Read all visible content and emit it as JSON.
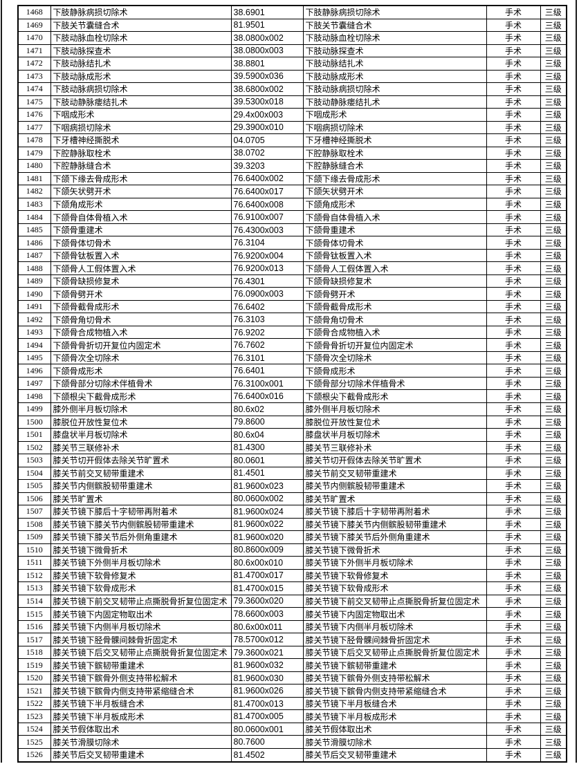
{
  "page": {
    "background_color": "#ffffff",
    "border_color": "#000000",
    "text_color": "#000000"
  },
  "table": {
    "column_keys": [
      "row-number-cell",
      "procedure-name-cell",
      "procedure-code-cell",
      "procedure-name2-cell",
      "category-cell",
      "level-cell"
    ],
    "category_label": "手术",
    "level_label": "三级",
    "rows": [
      [
        "1468",
        "下肢静脉病损切除术",
        "38.6901",
        "下肢静脉病损切除术",
        "手术",
        "三级"
      ],
      [
        "1469",
        "下肢关节囊缝合术",
        "81.9501",
        "下肢关节囊缝合术",
        "手术",
        "三级"
      ],
      [
        "1470",
        "下肢动脉血栓切除术",
        "38.0800x002",
        "下肢动脉血栓切除术",
        "手术",
        "三级"
      ],
      [
        "1471",
        "下肢动脉探查术",
        "38.0800x003",
        "下肢动脉探查术",
        "手术",
        "三级"
      ],
      [
        "1472",
        "下肢动脉结扎术",
        "38.8801",
        "下肢动脉结扎术",
        "手术",
        "三级"
      ],
      [
        "1473",
        "下肢动脉成形术",
        "39.5900x036",
        "下肢动脉成形术",
        "手术",
        "三级"
      ],
      [
        "1474",
        "下肢动脉病损切除术",
        "38.6800x002",
        "下肢动脉病损切除术",
        "手术",
        "三级"
      ],
      [
        "1475",
        "下肢动静脉瘘结扎术",
        "39.5300x018",
        "下肢动静脉瘘结扎术",
        "手术",
        "三级"
      ],
      [
        "1476",
        "下咽成形术",
        "29.4x00x003",
        "下咽成形术",
        "手术",
        "三级"
      ],
      [
        "1477",
        "下咽病损切除术",
        "29.3900x010",
        "下咽病损切除术",
        "手术",
        "三级"
      ],
      [
        "1478",
        "下牙槽神经撕脱术",
        "04.0705",
        "下牙槽神经撕脱术",
        "手术",
        "三级"
      ],
      [
        "1479",
        "下腔静脉取栓术",
        "38.0702",
        "下腔静脉取栓术",
        "手术",
        "三级"
      ],
      [
        "1480",
        "下腔静脉缝合术",
        "39.3203",
        "下腔静脉缝合术",
        "手术",
        "三级"
      ],
      [
        "1481",
        "下颌下缘去骨成形术",
        "76.6400x002",
        "下颌下缘去骨成形术",
        "手术",
        "三级"
      ],
      [
        "1482",
        "下颌矢状劈开术",
        "76.6400x017",
        "下颌矢状劈开术",
        "手术",
        "三级"
      ],
      [
        "1483",
        "下颌角成形术",
        "76.6400x008",
        "下颌角成形术",
        "手术",
        "三级"
      ],
      [
        "1484",
        "下颌骨自体骨植入术",
        "76.9100x007",
        "下颌骨自体骨植入术",
        "手术",
        "三级"
      ],
      [
        "1485",
        "下颌骨重建术",
        "76.4300x003",
        "下颌骨重建术",
        "手术",
        "三级"
      ],
      [
        "1486",
        "下颌骨体切骨术",
        "76.3104",
        "下颌骨体切骨术",
        "手术",
        "三级"
      ],
      [
        "1487",
        "下颌骨钛板置入术",
        "76.9200x004",
        "下颌骨钛板置入术",
        "手术",
        "三级"
      ],
      [
        "1488",
        "下颌骨人工假体置入术",
        "76.9200x013",
        "下颌骨人工假体置入术",
        "手术",
        "三级"
      ],
      [
        "1489",
        "下颌骨缺损修复术",
        "76.4301",
        "下颌骨缺损修复术",
        "手术",
        "三级"
      ],
      [
        "1490",
        "下颌骨劈开术",
        "76.0900x003",
        "下颌骨劈开术",
        "手术",
        "三级"
      ],
      [
        "1491",
        "下颌骨截骨成形术",
        "76.6402",
        "下颌骨截骨成形术",
        "手术",
        "三级"
      ],
      [
        "1492",
        "下颌骨角切骨术",
        "76.3103",
        "下颌骨角切骨术",
        "手术",
        "三级"
      ],
      [
        "1493",
        "下颌骨合成物植入术",
        "76.9202",
        "下颌骨合成物植入术",
        "手术",
        "三级"
      ],
      [
        "1494",
        "下颌骨骨折切开复位内固定术",
        "76.7602",
        "下颌骨骨折切开复位内固定术",
        "手术",
        "三级"
      ],
      [
        "1495",
        "下颌骨次全切除术",
        "76.3101",
        "下颌骨次全切除术",
        "手术",
        "三级"
      ],
      [
        "1496",
        "下颌骨成形术",
        "76.6401",
        "下颌骨成形术",
        "手术",
        "三级"
      ],
      [
        "1497",
        "下颌骨部分切除术伴植骨术",
        "76.3100x001",
        "下颌骨部分切除术伴植骨术",
        "手术",
        "三级"
      ],
      [
        "1498",
        "下颌根尖下截骨成形术",
        "76.6400x016",
        "下颌根尖下截骨成形术",
        "手术",
        "三级"
      ],
      [
        "1499",
        "膝外侧半月板切除术",
        "80.6x02",
        "膝外侧半月板切除术",
        "手术",
        "三级"
      ],
      [
        "1500",
        "膝脱位开放性复位术",
        "79.8600",
        "膝脱位开放性复位术",
        "手术",
        "三级"
      ],
      [
        "1501",
        "膝盘状半月板切除术",
        "80.6x04",
        "膝盘状半月板切除术",
        "手术",
        "三级"
      ],
      [
        "1502",
        "膝关节三联修补术",
        "81.4300",
        "膝关节三联修补术",
        "手术",
        "三级"
      ],
      [
        "1503",
        "膝关节切开假体去除关节旷置术",
        "80.0601",
        "膝关节切开假体去除关节旷置术",
        "手术",
        "三级"
      ],
      [
        "1504",
        "膝关节前交叉韧带重建术",
        "81.4501",
        "膝关节前交叉韧带重建术",
        "手术",
        "三级"
      ],
      [
        "1505",
        "膝关节内侧髌股韧带重建术",
        "81.9600x023",
        "膝关节内侧髌股韧带重建术",
        "手术",
        "三级"
      ],
      [
        "1506",
        "膝关节旷置术",
        "80.0600x002",
        "膝关节旷置术",
        "手术",
        "三级"
      ],
      [
        "1507",
        "膝关节镜下膝后十字韧带再附着术",
        "81.9600x024",
        "膝关节镜下膝后十字韧带再附着术",
        "手术",
        "三级"
      ],
      [
        "1508",
        "膝关节镜下膝关节内侧髌股韧带重建术",
        "81.9600x022",
        "膝关节镜下膝关节内侧髌股韧带重建术",
        "手术",
        "三级"
      ],
      [
        "1509",
        "膝关节镜下膝关节后外侧角重建术",
        "81.9600x020",
        "膝关节镜下膝关节后外侧角重建术",
        "手术",
        "三级"
      ],
      [
        "1510",
        "膝关节镜下微骨折术",
        "80.8600x009",
        "膝关节镜下微骨折术",
        "手术",
        "三级"
      ],
      [
        "1511",
        "膝关节镜下外侧半月板切除术",
        "80.6x00x010",
        "膝关节镜下外侧半月板切除术",
        "手术",
        "三级"
      ],
      [
        "1512",
        "膝关节镜下软骨修复术",
        "81.4700x017",
        "膝关节镜下软骨修复术",
        "手术",
        "三级"
      ],
      [
        "1513",
        "膝关节镜下软骨成形术",
        "81.4700x015",
        "膝关节镜下软骨成形术",
        "手术",
        "三级"
      ],
      [
        "1514",
        "膝关节镜下前交叉韧带止点撕脱骨折复位固定术",
        "79.3600x020",
        "膝关节镜下前交叉韧带止点撕脱骨折复位固定术",
        "手术",
        "三级"
      ],
      [
        "1515",
        "膝关节镜下内固定物取出术",
        "78.6600x003",
        "膝关节镜下内固定物取出术",
        "手术",
        "三级"
      ],
      [
        "1516",
        "膝关节镜下内侧半月板切除术",
        "80.6x00x011",
        "膝关节镜下内侧半月板切除术",
        "手术",
        "三级"
      ],
      [
        "1517",
        "膝关节镜下胫骨髁间棘骨折固定术",
        "78.5700x012",
        "膝关节镜下胫骨髁间棘骨折固定术",
        "手术",
        "三级"
      ],
      [
        "1518",
        "膝关节镜下后交叉韧带止点撕脱骨折复位固定术",
        "79.3600x021",
        "膝关节镜下后交叉韧带止点撕脱骨折复位固定术",
        "手术",
        "三级"
      ],
      [
        "1519",
        "膝关节镜下髌韧带重建术",
        "81.9600x032",
        "膝关节镜下髌韧带重建术",
        "手术",
        "三级"
      ],
      [
        "1520",
        "膝关节镜下髌骨外侧支持带松解术",
        "81.9600x030",
        "膝关节镜下髌骨外侧支持带松解术",
        "手术",
        "三级"
      ],
      [
        "1521",
        "膝关节镜下髌骨内侧支持带紧缩缝合术",
        "81.9600x026",
        "膝关节镜下髌骨内侧支持带紧缩缝合术",
        "手术",
        "三级"
      ],
      [
        "1522",
        "膝关节镜下半月板缝合术",
        "81.4700x013",
        "膝关节镜下半月板缝合术",
        "手术",
        "三级"
      ],
      [
        "1523",
        "膝关节镜下半月板成形术",
        "81.4700x005",
        "膝关节镜下半月板成形术",
        "手术",
        "三级"
      ],
      [
        "1524",
        "膝关节假体取出术",
        "80.0600x001",
        "膝关节假体取出术",
        "手术",
        "三级"
      ],
      [
        "1525",
        "膝关节滑膜切除术",
        "80.7600",
        "膝关节滑膜切除术",
        "手术",
        "三级"
      ],
      [
        "1526",
        "膝关节后交叉韧带重建术",
        "81.4502",
        "膝关节后交叉韧带重建术",
        "手术",
        "三级"
      ]
    ]
  }
}
